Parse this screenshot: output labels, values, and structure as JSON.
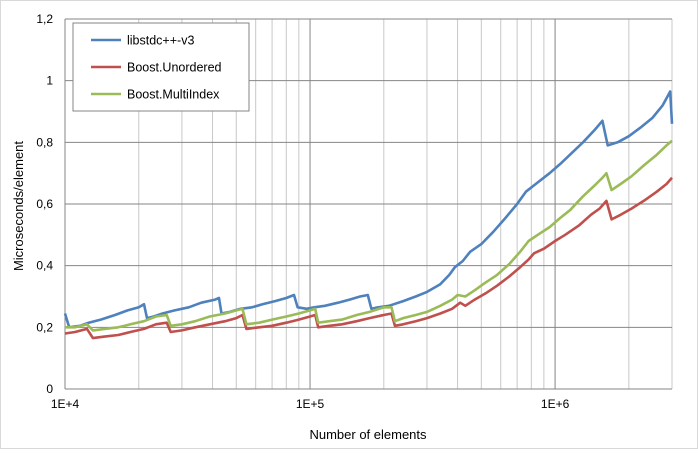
{
  "chart_data": {
    "type": "line",
    "xscale": "log",
    "xlabel": "Number of elements",
    "ylabel": "Microseconds/element",
    "xlim": [
      10000,
      3000000
    ],
    "ylim": [
      0,
      1.2
    ],
    "xticks": [
      {
        "value": 10000,
        "label": "1E+4"
      },
      {
        "value": 100000,
        "label": "1E+5"
      },
      {
        "value": 1000000,
        "label": "1E+6"
      }
    ],
    "yticks": [
      {
        "value": 0,
        "label": "0"
      },
      {
        "value": 0.2,
        "label": "0,2"
      },
      {
        "value": 0.4,
        "label": "0,4"
      },
      {
        "value": 0.6,
        "label": "0,6"
      },
      {
        "value": 0.8,
        "label": "0,8"
      },
      {
        "value": 1.0,
        "label": "1"
      },
      {
        "value": 1.2,
        "label": "1,2"
      }
    ],
    "grid": true,
    "legend_position": "top-left",
    "series": [
      {
        "name": "libstdc++-v3",
        "color": "#4F81BD",
        "points": [
          [
            10000,
            0.245
          ],
          [
            10400,
            0.2
          ],
          [
            11500,
            0.205
          ],
          [
            12500,
            0.215
          ],
          [
            14000,
            0.225
          ],
          [
            16000,
            0.24
          ],
          [
            18000,
            0.255
          ],
          [
            20000,
            0.265
          ],
          [
            21000,
            0.275
          ],
          [
            21600,
            0.23
          ],
          [
            23000,
            0.235
          ],
          [
            25000,
            0.245
          ],
          [
            28000,
            0.255
          ],
          [
            32000,
            0.265
          ],
          [
            36000,
            0.28
          ],
          [
            41000,
            0.29
          ],
          [
            42500,
            0.295
          ],
          [
            43500,
            0.245
          ],
          [
            47000,
            0.25
          ],
          [
            52000,
            0.26
          ],
          [
            58000,
            0.265
          ],
          [
            64000,
            0.275
          ],
          [
            72000,
            0.285
          ],
          [
            80000,
            0.295
          ],
          [
            86000,
            0.305
          ],
          [
            89000,
            0.265
          ],
          [
            97000,
            0.26
          ],
          [
            104000,
            0.265
          ],
          [
            115000,
            0.27
          ],
          [
            130000,
            0.28
          ],
          [
            145000,
            0.29
          ],
          [
            160000,
            0.3
          ],
          [
            172000,
            0.305
          ],
          [
            178000,
            0.26
          ],
          [
            190000,
            0.265
          ],
          [
            210000,
            0.27
          ],
          [
            240000,
            0.285
          ],
          [
            270000,
            0.3
          ],
          [
            300000,
            0.315
          ],
          [
            340000,
            0.34
          ],
          [
            370000,
            0.37
          ],
          [
            390000,
            0.395
          ],
          [
            420000,
            0.415
          ],
          [
            450000,
            0.445
          ],
          [
            500000,
            0.47
          ],
          [
            560000,
            0.51
          ],
          [
            620000,
            0.55
          ],
          [
            700000,
            0.6
          ],
          [
            760000,
            0.64
          ],
          [
            850000,
            0.67
          ],
          [
            950000,
            0.7
          ],
          [
            1050000,
            0.73
          ],
          [
            1150000,
            0.76
          ],
          [
            1300000,
            0.8
          ],
          [
            1450000,
            0.84
          ],
          [
            1560000,
            0.87
          ],
          [
            1640000,
            0.79
          ],
          [
            1800000,
            0.8
          ],
          [
            2000000,
            0.82
          ],
          [
            2250000,
            0.85
          ],
          [
            2500000,
            0.88
          ],
          [
            2750000,
            0.92
          ],
          [
            2950000,
            0.965
          ],
          [
            3000000,
            0.86
          ]
        ]
      },
      {
        "name": "Boost.Unordered",
        "color": "#C0504D",
        "points": [
          [
            10000,
            0.18
          ],
          [
            11000,
            0.185
          ],
          [
            12300,
            0.195
          ],
          [
            13000,
            0.165
          ],
          [
            14500,
            0.17
          ],
          [
            16500,
            0.175
          ],
          [
            18500,
            0.185
          ],
          [
            21000,
            0.195
          ],
          [
            23500,
            0.21
          ],
          [
            26000,
            0.215
          ],
          [
            27000,
            0.185
          ],
          [
            30000,
            0.19
          ],
          [
            34000,
            0.2
          ],
          [
            39000,
            0.21
          ],
          [
            45000,
            0.22
          ],
          [
            50000,
            0.23
          ],
          [
            53000,
            0.24
          ],
          [
            55000,
            0.195
          ],
          [
            62000,
            0.2
          ],
          [
            70000,
            0.205
          ],
          [
            80000,
            0.215
          ],
          [
            90000,
            0.225
          ],
          [
            100000,
            0.235
          ],
          [
            105000,
            0.24
          ],
          [
            108000,
            0.2
          ],
          [
            120000,
            0.205
          ],
          [
            135000,
            0.21
          ],
          [
            155000,
            0.22
          ],
          [
            175000,
            0.23
          ],
          [
            200000,
            0.24
          ],
          [
            215000,
            0.245
          ],
          [
            222000,
            0.205
          ],
          [
            240000,
            0.21
          ],
          [
            270000,
            0.22
          ],
          [
            300000,
            0.23
          ],
          [
            340000,
            0.245
          ],
          [
            380000,
            0.26
          ],
          [
            410000,
            0.28
          ],
          [
            430000,
            0.27
          ],
          [
            470000,
            0.29
          ],
          [
            520000,
            0.31
          ],
          [
            580000,
            0.335
          ],
          [
            650000,
            0.365
          ],
          [
            720000,
            0.395
          ],
          [
            780000,
            0.42
          ],
          [
            820000,
            0.44
          ],
          [
            900000,
            0.455
          ],
          [
            1000000,
            0.48
          ],
          [
            1100000,
            0.5
          ],
          [
            1250000,
            0.53
          ],
          [
            1400000,
            0.565
          ],
          [
            1520000,
            0.585
          ],
          [
            1620000,
            0.61
          ],
          [
            1700000,
            0.55
          ],
          [
            1850000,
            0.565
          ],
          [
            2050000,
            0.585
          ],
          [
            2300000,
            0.61
          ],
          [
            2600000,
            0.64
          ],
          [
            2850000,
            0.665
          ],
          [
            3000000,
            0.685
          ]
        ]
      },
      {
        "name": "Boost.MultiIndex",
        "color": "#9BBB59",
        "points": [
          [
            10000,
            0.2
          ],
          [
            11000,
            0.2
          ],
          [
            12300,
            0.21
          ],
          [
            13000,
            0.19
          ],
          [
            14500,
            0.195
          ],
          [
            16500,
            0.2
          ],
          [
            18500,
            0.21
          ],
          [
            21000,
            0.22
          ],
          [
            23500,
            0.235
          ],
          [
            26000,
            0.24
          ],
          [
            27000,
            0.205
          ],
          [
            30000,
            0.21
          ],
          [
            34000,
            0.22
          ],
          [
            39000,
            0.235
          ],
          [
            45000,
            0.245
          ],
          [
            50000,
            0.255
          ],
          [
            53000,
            0.26
          ],
          [
            55000,
            0.21
          ],
          [
            62000,
            0.215
          ],
          [
            70000,
            0.225
          ],
          [
            80000,
            0.235
          ],
          [
            90000,
            0.245
          ],
          [
            100000,
            0.255
          ],
          [
            105000,
            0.26
          ],
          [
            108000,
            0.215
          ],
          [
            120000,
            0.22
          ],
          [
            135000,
            0.225
          ],
          [
            155000,
            0.24
          ],
          [
            175000,
            0.25
          ],
          [
            200000,
            0.265
          ],
          [
            215000,
            0.265
          ],
          [
            222000,
            0.22
          ],
          [
            240000,
            0.23
          ],
          [
            270000,
            0.24
          ],
          [
            300000,
            0.25
          ],
          [
            340000,
            0.27
          ],
          [
            380000,
            0.29
          ],
          [
            400000,
            0.305
          ],
          [
            430000,
            0.3
          ],
          [
            470000,
            0.32
          ],
          [
            520000,
            0.345
          ],
          [
            580000,
            0.37
          ],
          [
            650000,
            0.405
          ],
          [
            720000,
            0.445
          ],
          [
            780000,
            0.48
          ],
          [
            850000,
            0.5
          ],
          [
            950000,
            0.525
          ],
          [
            1050000,
            0.555
          ],
          [
            1150000,
            0.58
          ],
          [
            1300000,
            0.625
          ],
          [
            1450000,
            0.66
          ],
          [
            1560000,
            0.685
          ],
          [
            1620000,
            0.7
          ],
          [
            1700000,
            0.645
          ],
          [
            1850000,
            0.665
          ],
          [
            2050000,
            0.69
          ],
          [
            2300000,
            0.725
          ],
          [
            2600000,
            0.76
          ],
          [
            2850000,
            0.79
          ],
          [
            3000000,
            0.805
          ]
        ]
      }
    ]
  }
}
